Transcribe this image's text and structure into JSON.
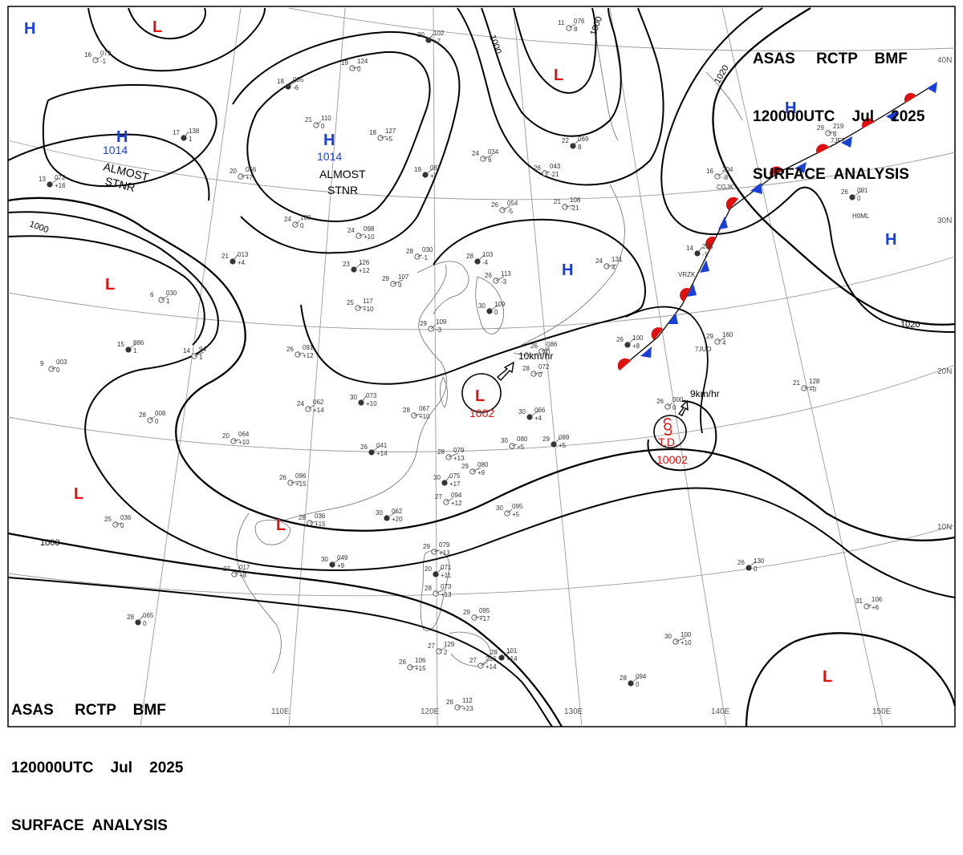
{
  "header": {
    "line1": "ASAS     RCTP    BMF",
    "line2": "120000UTC    Jul    2025",
    "line3": "SURFACE  ANALYSIS"
  },
  "footer": {
    "line1": "ASAS     RCTP    BMF",
    "line2": "120000UTC    Jul    2025",
    "line3": "SURFACE  ANALYSIS"
  },
  "colors": {
    "high": "#1a3fd6",
    "low": "#e01010",
    "isobar": "#000000",
    "grid": "#9a9a9a",
    "coast": "#6b6b6b"
  },
  "lat_labels": [
    "40N",
    "30N",
    "20N",
    "10N"
  ],
  "lon_labels": [
    "110E",
    "120E",
    "130E",
    "140E",
    "150E"
  ],
  "isobar_labels": [
    "1000",
    "1000",
    "1000",
    "1020",
    "1020",
    "1000"
  ],
  "highs": [
    {
      "symbol": "H"
    },
    {
      "symbol": "H"
    },
    {
      "symbol": "H"
    },
    {
      "symbol": "H"
    },
    {
      "symbol": "H"
    },
    {
      "symbol": "H"
    }
  ],
  "lows": [
    {
      "symbol": "L"
    },
    {
      "symbol": "L"
    },
    {
      "symbol": "L"
    },
    {
      "symbol": "L"
    },
    {
      "symbol": "L"
    },
    {
      "symbol": "L"
    },
    {
      "symbol": "L"
    }
  ],
  "pressure_labels": {
    "high_w": "1014",
    "high_c": "1014",
    "low_sc": "1002",
    "td_pressure": "10002"
  },
  "status_labels": {
    "almost1": "ALMOST",
    "stnr1": "STNR",
    "almost2": "ALMOST",
    "stnr2": "STNR",
    "td": "T.D."
  },
  "movement": {
    "low_sc": "10km/hr",
    "td": "9km/hr"
  },
  "station_labels": [
    "CGJK",
    "VRZK",
    "7JFT",
    "H9ML",
    "7JUO"
  ],
  "stations": [
    {
      "t": "20",
      "p": "102",
      "v": "+7"
    },
    {
      "t": "11",
      "p": "076",
      "v": "8"
    },
    {
      "t": "19",
      "p": "124",
      "v": "0"
    },
    {
      "t": "18",
      "p": "085",
      "v": "-6"
    },
    {
      "t": "21",
      "p": "110",
      "v": "0"
    },
    {
      "t": "18",
      "p": "127",
      "v": "+5"
    },
    {
      "t": "19",
      "p": "087",
      "v": "+7"
    },
    {
      "t": "24",
      "p": "034",
      "v": "6"
    },
    {
      "t": "26",
      "p": "043",
      "v": "-21"
    },
    {
      "t": "22",
      "p": "069",
      "v": "8"
    },
    {
      "t": "26",
      "p": "054",
      "v": "-5"
    },
    {
      "t": "21",
      "p": "108",
      "v": "-21"
    },
    {
      "t": "17",
      "p": "138",
      "v": "1"
    },
    {
      "t": "16",
      "p": "079",
      "v": "-1"
    },
    {
      "t": "20",
      "p": "056",
      "v": "+7"
    },
    {
      "t": "13",
      "p": "072",
      "v": "+16"
    },
    {
      "t": "24",
      "p": "108",
      "v": "0"
    },
    {
      "t": "24",
      "p": "098",
      "v": "+10"
    },
    {
      "t": "23",
      "p": "126",
      "v": "+12"
    },
    {
      "t": "29",
      "p": "107",
      "v": "0"
    },
    {
      "t": "28",
      "p": "030",
      "v": "-1"
    },
    {
      "t": "28",
      "p": "103",
      "v": "-4"
    },
    {
      "t": "26",
      "p": "113",
      "v": "-3"
    },
    {
      "t": "24",
      "p": "131",
      "v": "4"
    },
    {
      "t": "21",
      "p": "013",
      "v": "+4"
    },
    {
      "t": "6",
      "p": "030",
      "v": "1"
    },
    {
      "t": "25",
      "p": "117",
      "v": "+10"
    },
    {
      "t": "30",
      "p": "109",
      "v": "0"
    },
    {
      "t": "29",
      "p": "109",
      "v": "-3"
    },
    {
      "t": "26",
      "p": "091",
      "v": "+12"
    },
    {
      "t": "15",
      "p": "886",
      "v": "1"
    },
    {
      "t": "14",
      "p": "94",
      "v": "1"
    },
    {
      "t": "9",
      "p": "003",
      "v": "0"
    },
    {
      "t": "26",
      "p": "100",
      "v": "+8"
    },
    {
      "t": "26",
      "p": "086",
      "v": "0"
    },
    {
      "t": "28",
      "p": "072",
      "v": "0"
    },
    {
      "t": "30",
      "p": "073",
      "v": "+10"
    },
    {
      "t": "24",
      "p": "062",
      "v": "+14"
    },
    {
      "t": "28",
      "p": "067",
      "v": "+10"
    },
    {
      "t": "30",
      "p": "066",
      "v": "+4"
    },
    {
      "t": "28",
      "p": "008",
      "v": "0"
    },
    {
      "t": "20",
      "p": "064",
      "v": "+10"
    },
    {
      "t": "26",
      "p": "041",
      "v": "+14"
    },
    {
      "t": "28",
      "p": "079",
      "v": "+13"
    },
    {
      "t": "30",
      "p": "080",
      "v": "+5"
    },
    {
      "t": "29",
      "p": "089",
      "v": "+5"
    },
    {
      "t": "29",
      "p": "080",
      "v": "+9"
    },
    {
      "t": "26",
      "p": "096",
      "v": "+15"
    },
    {
      "t": "30",
      "p": "075",
      "v": "+17"
    },
    {
      "t": "27",
      "p": "094",
      "v": "+12"
    },
    {
      "t": "28",
      "p": "036",
      "v": "+15"
    },
    {
      "t": "30",
      "p": "062",
      "v": "+20"
    },
    {
      "t": "30",
      "p": "095",
      "v": "+5"
    },
    {
      "t": "25",
      "p": "036",
      "v": "0"
    },
    {
      "t": "30",
      "p": "049",
      "v": "+9"
    },
    {
      "t": "27",
      "p": "017",
      "v": "+8"
    },
    {
      "t": "29",
      "p": "079",
      "v": "+13"
    },
    {
      "t": "20",
      "p": "071",
      "v": "+11"
    },
    {
      "t": "28",
      "p": "073",
      "v": "+13"
    },
    {
      "t": "29",
      "p": "095",
      "v": "+17"
    },
    {
      "t": "28",
      "p": "065",
      "v": "0"
    },
    {
      "t": "27",
      "p": "129",
      "v": "2"
    },
    {
      "t": "26",
      "p": "106",
      "v": "+15"
    },
    {
      "t": "28",
      "p": "101",
      "v": "+14"
    },
    {
      "t": "27",
      "p": "216",
      "v": "+14"
    },
    {
      "t": "26",
      "p": "112",
      "v": "+23"
    },
    {
      "t": "28",
      "p": "094",
      "v": "0"
    },
    {
      "t": "30",
      "p": "100",
      "v": "+10"
    },
    {
      "t": "31",
      "p": "106",
      "v": "+6"
    },
    {
      "t": "26",
      "p": "130",
      "v": "0"
    },
    {
      "t": "29",
      "p": "160",
      "v": "4"
    },
    {
      "t": "21",
      "p": "128",
      "v": "+0"
    },
    {
      "t": "14",
      "p": "203",
      "v": "-1"
    },
    {
      "t": "16",
      "p": "204",
      "v": "-8"
    },
    {
      "t": "29",
      "p": "219",
      "v": "6"
    },
    {
      "t": "26",
      "p": "091",
      "v": "0"
    },
    {
      "t": "26",
      "p": "000",
      "v": "0"
    }
  ]
}
